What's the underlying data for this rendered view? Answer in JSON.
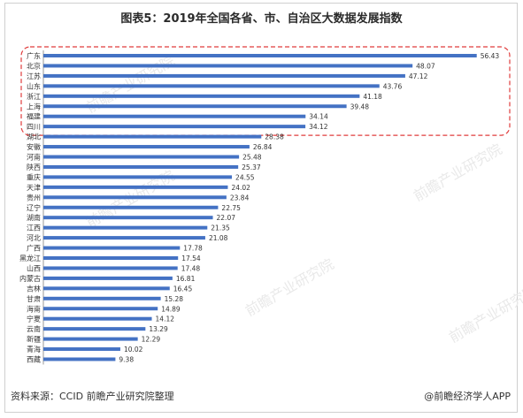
{
  "title": "图表5：2019年全国各省、市、自治区大数据发展指数",
  "source": "资料来源：CCID 前瞻产业研究院整理",
  "brand": "@前瞻经济学人APP",
  "watermark": "前瞻产业研究院",
  "colors": {
    "bar": "#4472c4",
    "highlight_border": "#e03c3c"
  },
  "chart_data": {
    "type": "bar",
    "orientation": "horizontal",
    "categories": [
      "广东",
      "北京",
      "江苏",
      "山东",
      "浙江",
      "上海",
      "福建",
      "四川",
      "湖北",
      "安徽",
      "河南",
      "陕西",
      "重庆",
      "天津",
      "贵州",
      "辽宁",
      "湖南",
      "江西",
      "河北",
      "广西",
      "黑龙江",
      "山西",
      "内蒙古",
      "吉林",
      "甘肃",
      "海南",
      "宁夏",
      "云南",
      "新疆",
      "青海",
      "西藏"
    ],
    "values": [
      56.43,
      48.07,
      47.12,
      43.76,
      41.18,
      39.48,
      34.14,
      34.12,
      28.38,
      26.84,
      25.48,
      25.37,
      24.55,
      24.02,
      23.84,
      22.75,
      22.07,
      21.35,
      21.08,
      17.78,
      17.54,
      17.48,
      16.81,
      16.45,
      15.28,
      14.89,
      14.12,
      13.29,
      12.29,
      10.02,
      9.38
    ],
    "value_labels": [
      "56.43",
      "48.07",
      "47.12",
      "43.76",
      "41.18",
      "39.48",
      "34.14",
      "34.12",
      "28.38",
      "26.84",
      "25.48",
      "25.37",
      "24.55",
      "24.02",
      "23.84",
      "22.75",
      "22.07",
      "21.35",
      "21.08",
      "17.78",
      "17.54",
      "17.48",
      "16.81",
      "16.45",
      "15.28",
      "14.89",
      "14.12",
      "13.29",
      "12.29",
      "10.02",
      "9.38"
    ],
    "highlighted_top_n": 8,
    "xlim": [
      0,
      57.5
    ],
    "grid": false,
    "legend": "none"
  }
}
